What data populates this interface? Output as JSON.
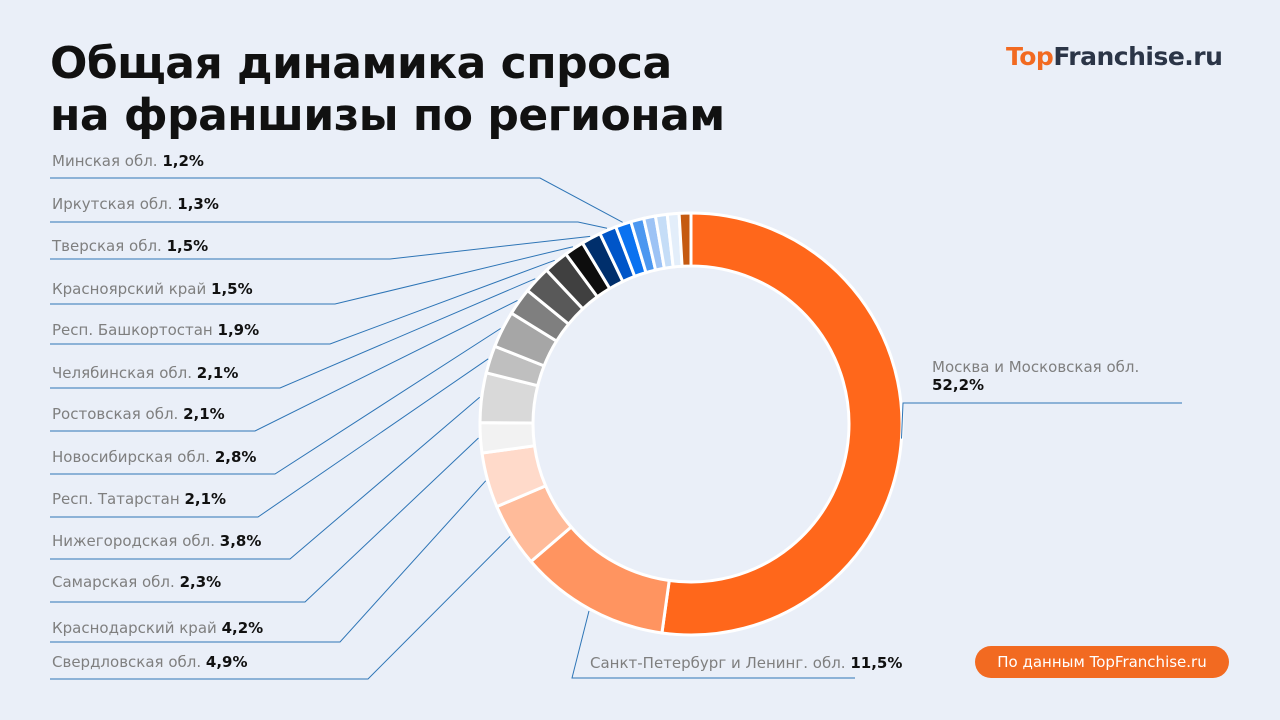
{
  "title_line1": "Общая динамика спроса",
  "title_line2": "на франшизы по регионам",
  "logo": {
    "part1": "Top",
    "part2": "Franchise.ru"
  },
  "source_label": "По данным TopFranchise.ru",
  "chart_data": {
    "type": "pie",
    "subtype": "donut",
    "start": "top, clockwise",
    "slices": [
      {
        "name": "Москва и Московская обл.",
        "value_label": "52,2%",
        "value": 52.2,
        "color": "#FF671B"
      },
      {
        "name": "Санкт-Петербург и Ленинг. обл.",
        "value_label": "11,5%",
        "value": 11.5,
        "color": "#FF9460"
      },
      {
        "name": "Свердловская обл.",
        "value_label": "4,9%",
        "value": 4.9,
        "color": "#FFBB9A"
      },
      {
        "name": "Краснодарский край",
        "value_label": "4,2%",
        "value": 4.2,
        "color": "#FFDACA"
      },
      {
        "name": "Самарская обл.",
        "value_label": "2,3%",
        "value": 2.3,
        "color": "#F2F2F2"
      },
      {
        "name": "Нижегородская обл.",
        "value_label": "3,8%",
        "value": 3.8,
        "color": "#D9D9D9"
      },
      {
        "name": "Респ. Татарстан",
        "value_label": "2,1%",
        "value": 2.1,
        "color": "#BFBFBF"
      },
      {
        "name": "Новосибирская обл.",
        "value_label": "2,8%",
        "value": 2.8,
        "color": "#A6A6A6"
      },
      {
        "name": "Ростовская обл.",
        "value_label": "2,1%",
        "value": 2.1,
        "color": "#7F7F7F"
      },
      {
        "name": "Челябинская обл.",
        "value_label": "2,1%",
        "value": 2.1,
        "color": "#595959"
      },
      {
        "name": "Респ. Башкортостан",
        "value_label": "1,9%",
        "value": 1.9,
        "color": "#404040"
      },
      {
        "name": "Красноярский край",
        "value_label": "1,5%",
        "value": 1.5,
        "color": "#0D0D0D"
      },
      {
        "name": "Тверская обл.",
        "value_label": "1,5%",
        "value": 1.5,
        "color": "#002F6C"
      },
      {
        "name": "Иркутская обл.",
        "value_label": "1,3%",
        "value": 1.3,
        "color": "#0055C8"
      },
      {
        "name": "Минская обл.",
        "value_label": "1,2%",
        "value": 1.2,
        "color": "#0A72F0"
      },
      {
        "name": "",
        "value": 1.0,
        "color": "#4B97F0"
      },
      {
        "name": "",
        "value": 0.9,
        "color": "#9DC3F5"
      },
      {
        "name": "",
        "value": 0.9,
        "color": "#C5DDF7"
      },
      {
        "name": "",
        "value": 0.9,
        "color": "#E3EEFA"
      },
      {
        "name": "",
        "value": 0.9,
        "color": "#C55A11"
      }
    ],
    "leader_line_color": "#2E75B6"
  }
}
